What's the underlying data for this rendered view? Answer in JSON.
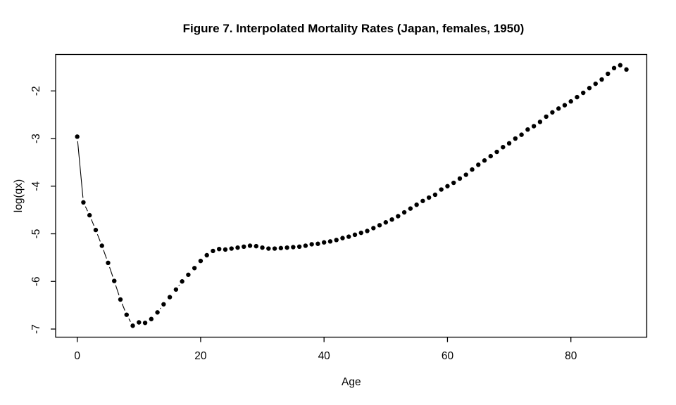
{
  "chart_data": {
    "type": "scatter",
    "title": "Figure 7. Interpolated Mortality Rates (Japan, females, 1950)",
    "xlabel": "Age",
    "ylabel": "log(qx)",
    "x": [
      0,
      1,
      2,
      3,
      4,
      5,
      6,
      7,
      8,
      9,
      10,
      11,
      12,
      13,
      14,
      15,
      16,
      17,
      18,
      19,
      20,
      21,
      22,
      23,
      24,
      25,
      26,
      27,
      28,
      29,
      30,
      31,
      32,
      33,
      34,
      35,
      36,
      37,
      38,
      39,
      40,
      41,
      42,
      43,
      44,
      45,
      46,
      47,
      48,
      49,
      50,
      51,
      52,
      53,
      54,
      55,
      56,
      57,
      58,
      59,
      60,
      61,
      62,
      63,
      64,
      65,
      66,
      67,
      68,
      69,
      70,
      71,
      72,
      73,
      74,
      75,
      76,
      77,
      78,
      79,
      80,
      81,
      82,
      83,
      84,
      85,
      86,
      87,
      88,
      89
    ],
    "y": [
      -2.96,
      -4.34,
      -4.61,
      -4.92,
      -5.25,
      -5.61,
      -5.99,
      -6.38,
      -6.7,
      -6.93,
      -6.86,
      -6.87,
      -6.79,
      -6.65,
      -6.48,
      -6.33,
      -6.17,
      -6.0,
      -5.86,
      -5.72,
      -5.57,
      -5.45,
      -5.36,
      -5.32,
      -5.33,
      -5.31,
      -5.29,
      -5.27,
      -5.25,
      -5.26,
      -5.29,
      -5.31,
      -5.31,
      -5.3,
      -5.29,
      -5.28,
      -5.27,
      -5.25,
      -5.22,
      -5.21,
      -5.18,
      -5.16,
      -5.13,
      -5.09,
      -5.06,
      -5.02,
      -4.98,
      -4.94,
      -4.88,
      -4.82,
      -4.76,
      -4.7,
      -4.63,
      -4.55,
      -4.47,
      -4.39,
      -4.31,
      -4.24,
      -4.18,
      -4.07,
      -4.0,
      -3.93,
      -3.84,
      -3.76,
      -3.65,
      -3.55,
      -3.46,
      -3.37,
      -3.28,
      -3.18,
      -3.1,
      -3.0,
      -2.92,
      -2.81,
      -2.74,
      -2.65,
      -2.54,
      -2.45,
      -2.37,
      -2.3,
      -2.22,
      -2.13,
      -2.04,
      -1.94,
      -1.85,
      -1.76,
      -1.64,
      -1.52,
      -1.46,
      -1.55
    ],
    "xlim": [
      -3.5,
      92.3
    ],
    "ylim": [
      -7.17,
      -1.235
    ],
    "xticks": [
      0,
      20,
      40,
      60,
      80
    ],
    "yticks": [
      -7,
      -6,
      -5,
      -4,
      -3,
      -2
    ],
    "grid": false,
    "legend": null,
    "marker": "filled-circle",
    "line_type": "b-segments-between-points",
    "point_color": "#000000",
    "line_color": "#000000",
    "axis_color": "#000000",
    "background_color": "#ffffff"
  }
}
